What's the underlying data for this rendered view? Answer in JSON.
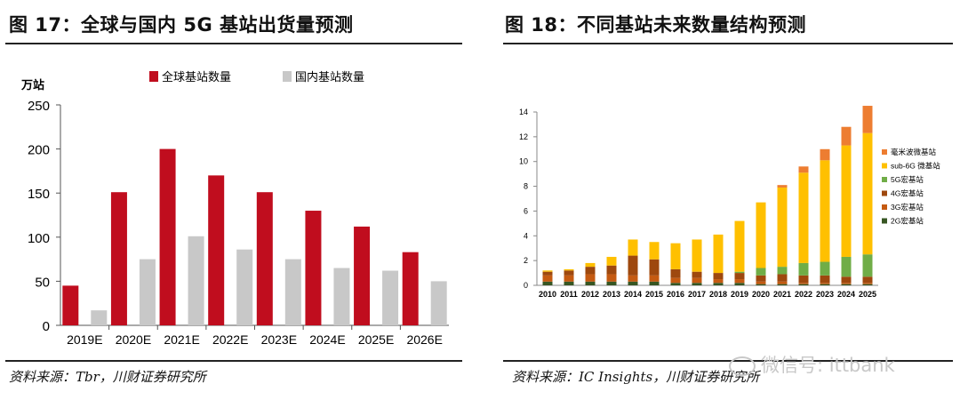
{
  "left": {
    "title": "图 17：全球与国内 5G 基站出货量预测",
    "source": "资料来源：Tbr，川财证券研究所"
  },
  "right": {
    "title": "图 18：不同基站未来数量结构预测",
    "source": "资料来源：IC Insights，川财证券研究所"
  },
  "watermark": {
    "text": "微信号: ittbank",
    "icon": "wechat-icon"
  },
  "chart_data": [
    {
      "type": "bar",
      "title": "",
      "xlabel": "",
      "ylabel": "万站",
      "ylim": [
        0,
        250
      ],
      "yticks": [
        0,
        50,
        100,
        150,
        200,
        250
      ],
      "grid": false,
      "legend_position": "top",
      "categories": [
        "2019E",
        "2020E",
        "2021E",
        "2022E",
        "2023E",
        "2024E",
        "2025E",
        "2026E"
      ],
      "series": [
        {
          "name": "全球基站数量",
          "color": "#c00d1e",
          "values": [
            45,
            151,
            200,
            170,
            151,
            130,
            112,
            83
          ]
        },
        {
          "name": "国内基站数量",
          "color": "#c8c8c8",
          "values": [
            17,
            75,
            101,
            86,
            75,
            65,
            62,
            50
          ]
        }
      ]
    },
    {
      "type": "bar",
      "stacked": true,
      "title": "",
      "xlabel": "",
      "ylabel": "",
      "ylim": [
        0,
        14
      ],
      "yticks": [
        0,
        2,
        4,
        6,
        8,
        10,
        12,
        14
      ],
      "grid": false,
      "legend_position": "right",
      "categories": [
        "2010",
        "2011",
        "2012",
        "2013",
        "2014",
        "2015",
        "2016",
        "2017",
        "2018",
        "2019",
        "2020",
        "2021",
        "2022",
        "2023",
        "2024",
        "2025"
      ],
      "series": [
        {
          "name": "2G宏基站",
          "color": "#375623",
          "values": [
            0.3,
            0.3,
            0.3,
            0.3,
            0.3,
            0.3,
            0.2,
            0.2,
            0.2,
            0.2,
            0.1,
            0.1,
            0.1,
            0.1,
            0.1,
            0.1
          ]
        },
        {
          "name": "3G宏基站",
          "color": "#c55a11",
          "values": [
            0.5,
            0.5,
            0.6,
            0.6,
            0.5,
            0.5,
            0.4,
            0.4,
            0.3,
            0.3,
            0.2,
            0.2,
            0.1,
            0.1,
            0.1,
            0.1
          ]
        },
        {
          "name": "4G宏基站",
          "color": "#9e480e",
          "values": [
            0.3,
            0.4,
            0.6,
            0.7,
            1.6,
            1.3,
            0.7,
            0.5,
            0.5,
            0.5,
            0.5,
            0.6,
            0.6,
            0.6,
            0.5,
            0.5
          ]
        },
        {
          "name": "5G宏基站",
          "color": "#70ad47",
          "values": [
            0,
            0,
            0,
            0,
            0,
            0,
            0,
            0,
            0,
            0.1,
            0.6,
            0.6,
            1.0,
            1.1,
            1.6,
            1.8
          ]
        },
        {
          "name": "sub-6G 微基站",
          "color": "#ffc000",
          "values": [
            0.1,
            0.1,
            0.3,
            0.7,
            1.3,
            1.4,
            2.1,
            2.6,
            3.1,
            4.1,
            5.3,
            6.4,
            7.3,
            8.2,
            9.0,
            9.8
          ]
        },
        {
          "name": "毫米波微基站",
          "color": "#ed7d31",
          "values": [
            0,
            0,
            0,
            0,
            0,
            0,
            0,
            0,
            0,
            0,
            0,
            0.2,
            0.5,
            0.9,
            1.5,
            2.2
          ]
        }
      ]
    }
  ]
}
